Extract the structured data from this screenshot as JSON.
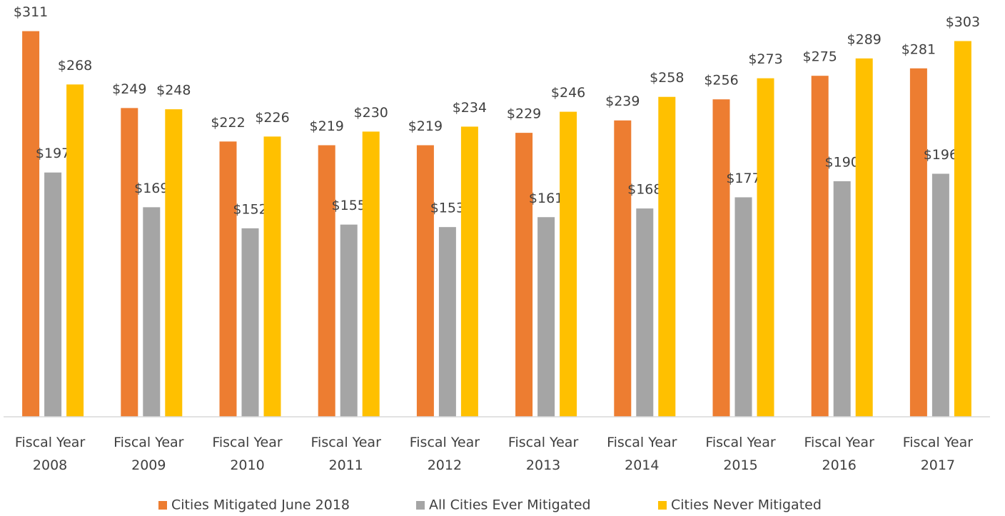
{
  "chart_data": {
    "type": "bar",
    "categories": [
      "Fiscal Year 2008",
      "Fiscal Year 2009",
      "Fiscal Year 2010",
      "Fiscal Year 2011",
      "Fiscal Year 2012",
      "Fiscal Year 2013",
      "Fiscal Year 2014",
      "Fiscal Year 2015",
      "Fiscal Year 2016",
      "Fiscal Year 2017"
    ],
    "series": [
      {
        "name": "Cities Mitigated June 2018",
        "color": "#ed7d31",
        "values": [
          311,
          249,
          222,
          219,
          219,
          229,
          239,
          256,
          275,
          281
        ],
        "value_labels": [
          "$311",
          "$249",
          "$222",
          "$219",
          "$219",
          "$229",
          "$239",
          "$256",
          "$275",
          "$281"
        ]
      },
      {
        "name": "All Cities Ever Mitigated",
        "color": "#a5a5a5",
        "values": [
          197,
          169,
          152,
          155,
          153,
          161,
          168,
          177,
          190,
          196
        ],
        "value_labels": [
          "$197",
          "$169",
          "$152",
          "$155",
          "$153",
          "$161",
          "$168",
          "$177",
          "$190",
          "$196"
        ]
      },
      {
        "name": "Cities Never Mitigated",
        "color": "#ffc000",
        "values": [
          268,
          248,
          226,
          230,
          234,
          246,
          258,
          273,
          289,
          303
        ],
        "value_labels": [
          "$268",
          "$248",
          "$226",
          "$230",
          "$234",
          "$246",
          "$258",
          "$273",
          "$289",
          "$303"
        ]
      }
    ],
    "ylim": [
      0,
      320
    ],
    "legend": "bottom"
  }
}
